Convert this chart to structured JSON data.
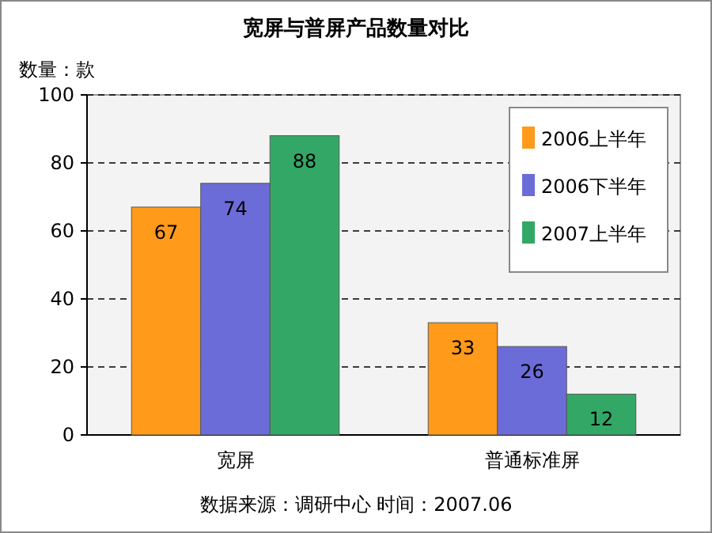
{
  "chart_data": {
    "type": "bar",
    "title": "宽屏与普屏产品数量对比",
    "ylabel": "数量：款",
    "categories": [
      "宽屏",
      "普通标准屏"
    ],
    "series": [
      {
        "name": "2006上半年",
        "color": "#ff9a1a",
        "values": [
          67,
          33
        ]
      },
      {
        "name": "2006下半年",
        "color": "#6c6cd8",
        "values": [
          74,
          26
        ]
      },
      {
        "name": "2007上半年",
        "color": "#33a866",
        "values": [
          88,
          12
        ]
      }
    ],
    "ylim": [
      0,
      100
    ],
    "yticks": [
      0,
      20,
      40,
      60,
      80,
      100
    ],
    "grid": "y",
    "legend": "top right",
    "data_labels": true,
    "annotations": [
      "数据来源：调研中心    时间：2007.06"
    ]
  }
}
